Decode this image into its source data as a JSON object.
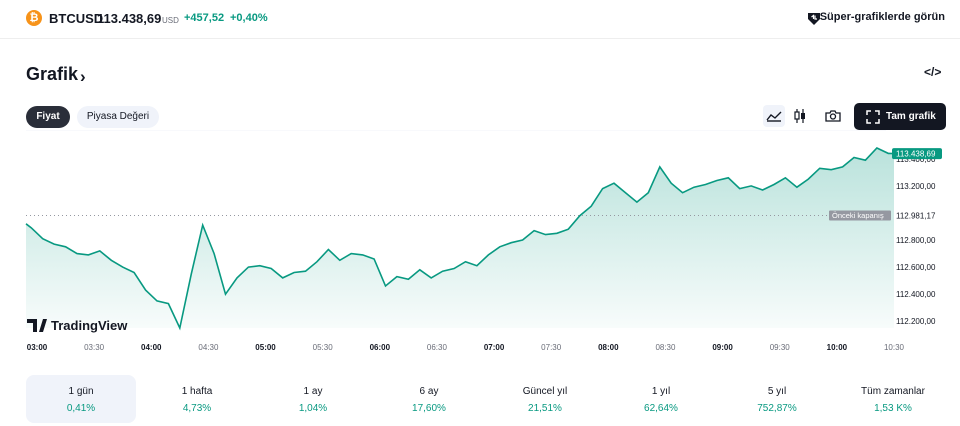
{
  "header": {
    "coin_glyph": "₿",
    "symbol": "BTCUSD",
    "price": "113.438,69",
    "currency": "USD",
    "change": "+457,52",
    "change_pct": "+0,40%",
    "super_charts_label": "Süper-grafiklerde görün"
  },
  "section": {
    "title": "Grafik",
    "chevron": "›",
    "embed_icon": "</>"
  },
  "tabs": [
    {
      "label": "Fiyat",
      "active": true
    },
    {
      "label": "Piyasa Değeri",
      "active": false
    }
  ],
  "toolbar": {
    "full_chart_label": "Tam grafik",
    "icons": [
      "area-chart-icon",
      "candles-icon",
      "camera-icon",
      "fullscreen-icon"
    ]
  },
  "chart_data": {
    "type": "area",
    "x_labels": [
      "03:00",
      "03:30",
      "04:00",
      "04:30",
      "05:00",
      "05:30",
      "06:00",
      "06:30",
      "07:00",
      "07:30",
      "08:00",
      "08:30",
      "09:00",
      "09:30",
      "10:00",
      "10:30"
    ],
    "bold_x_labels": [
      "03:00",
      "04:00",
      "05:00",
      "06:00",
      "07:00",
      "08:00",
      "09:00",
      "10:00"
    ],
    "y_ticks": [
      112200,
      112400,
      112600,
      112800,
      113200
    ],
    "y_tick_labels": [
      "112.200,00",
      "112.400,00",
      "112.600,00",
      "112.800,00",
      "113.200,00"
    ],
    "ylim": [
      112150,
      113480
    ],
    "current_price": 113438.69,
    "current_price_label": "113.438,69",
    "prev_close": 112981.17,
    "prev_close_label": "112.981,17",
    "prev_close_text": "Önceki kapanış",
    "hidden_tick_label": "113.400,00",
    "watermark": "TradingView",
    "line_color": "#089981",
    "x": [
      2.85,
      2.95,
      3.05,
      3.15,
      3.25,
      3.35,
      3.45,
      3.55,
      3.65,
      3.75,
      3.85,
      3.95,
      4.05,
      4.15,
      4.25,
      4.35,
      4.45,
      4.55,
      4.65,
      4.75,
      4.85,
      4.95,
      5.05,
      5.15,
      5.25,
      5.35,
      5.45,
      5.55,
      5.65,
      5.75,
      5.85,
      5.95,
      6.05,
      6.15,
      6.25,
      6.35,
      6.45,
      6.55,
      6.65,
      6.75,
      6.85,
      6.95,
      7.05,
      7.15,
      7.25,
      7.35,
      7.45,
      7.55,
      7.65,
      7.75,
      7.85,
      7.95,
      8.05,
      8.15,
      8.25,
      8.35,
      8.45,
      8.55,
      8.65,
      8.75,
      8.85,
      8.95,
      9.05,
      9.15,
      9.25,
      9.35,
      9.45,
      9.55,
      9.65,
      9.75,
      9.85,
      9.95,
      10.05,
      10.15,
      10.25,
      10.35,
      10.45,
      10.5
    ],
    "values": [
      112920,
      112890,
      112810,
      112770,
      112750,
      112700,
      112690,
      112720,
      112650,
      112600,
      112560,
      112430,
      112350,
      112330,
      112150,
      112550,
      112910,
      112700,
      112400,
      112520,
      112600,
      112610,
      112590,
      112520,
      112560,
      112570,
      112640,
      112730,
      112650,
      112700,
      112690,
      112660,
      112460,
      112530,
      112510,
      112580,
      112520,
      112570,
      112590,
      112640,
      112610,
      112690,
      112750,
      112780,
      112800,
      112870,
      112840,
      112850,
      112880,
      112980,
      113050,
      113180,
      113220,
      113150,
      113080,
      113150,
      113340,
      113220,
      113150,
      113190,
      113210,
      113240,
      113260,
      113180,
      113200,
      113170,
      113210,
      113260,
      113190,
      113250,
      113330,
      113320,
      113340,
      113410,
      113390,
      113480,
      113440,
      113438.69
    ]
  },
  "periods": [
    {
      "label": "1 gün",
      "value": "0,41%",
      "selected": true
    },
    {
      "label": "1 hafta",
      "value": "4,73%",
      "selected": false
    },
    {
      "label": "1 ay",
      "value": "1,04%",
      "selected": false
    },
    {
      "label": "6 ay",
      "value": "17,60%",
      "selected": false
    },
    {
      "label": "Güncel yıl",
      "value": "21,51%",
      "selected": false
    },
    {
      "label": "1 yıl",
      "value": "62,64%",
      "selected": false
    },
    {
      "label": "5 yıl",
      "value": "752,87%",
      "selected": false
    },
    {
      "label": "Tüm zamanlar",
      "value": "1,53 K%",
      "selected": false
    }
  ]
}
